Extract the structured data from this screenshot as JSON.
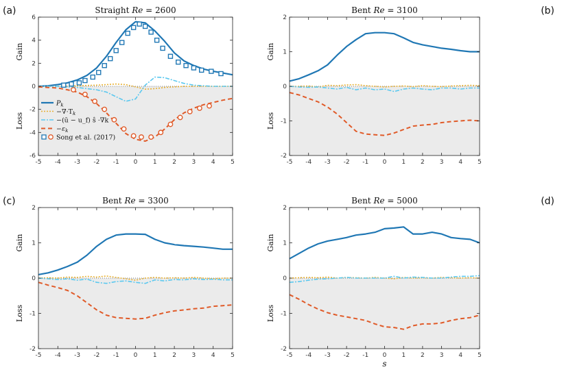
{
  "chart_data": [
    {
      "type": "line",
      "panel_label": "(a)",
      "title": "Straight Re = 2600",
      "xlabel": "",
      "gain_label": "Gain",
      "loss_label": "Loss",
      "xlim": [
        -5,
        5
      ],
      "ylim": [
        -6,
        6
      ],
      "xticks": [
        "-5",
        "-4",
        "-3",
        "-2",
        "-1",
        "0",
        "1",
        "2",
        "3",
        "4",
        "5"
      ],
      "yticks": [
        "-6",
        "-4",
        "-2",
        "0",
        "2",
        "4",
        "6"
      ],
      "x": [
        -5,
        -4.5,
        -4,
        -3.5,
        -3,
        -2.5,
        -2,
        -1.5,
        -1,
        -0.5,
        0,
        0.5,
        1,
        1.5,
        2,
        2.5,
        3,
        3.5,
        4,
        4.5,
        5
      ],
      "series": [
        {
          "name": "P_k",
          "style": "Pk",
          "values": [
            0,
            0.05,
            0.15,
            0.3,
            0.55,
            0.95,
            1.6,
            2.6,
            3.8,
            4.9,
            5.6,
            5.5,
            4.8,
            3.9,
            2.9,
            2.2,
            1.8,
            1.5,
            1.3,
            1.15,
            1.0
          ]
        },
        {
          "name": "-∇·T_k",
          "style": "Tk",
          "values": [
            0,
            0,
            0,
            0.02,
            0.05,
            0.08,
            0.1,
            0.15,
            0.2,
            0.15,
            -0.05,
            -0.25,
            -0.2,
            -0.1,
            -0.05,
            0,
            0,
            0,
            0,
            0,
            0
          ]
        },
        {
          "name": "adv",
          "style": "adv",
          "values": [
            0,
            0,
            -0.02,
            -0.05,
            -0.1,
            -0.2,
            -0.3,
            -0.5,
            -0.9,
            -1.3,
            -1.1,
            0.1,
            0.8,
            0.75,
            0.5,
            0.25,
            0.1,
            0.05,
            0,
            0,
            0
          ]
        },
        {
          "name": "ε_k",
          "style": "eps",
          "values": [
            -0.05,
            -0.1,
            -0.15,
            -0.3,
            -0.5,
            -0.9,
            -1.5,
            -2.3,
            -3.2,
            -4.1,
            -4.6,
            -4.75,
            -4.4,
            -3.7,
            -2.9,
            -2.3,
            -1.9,
            -1.6,
            -1.4,
            -1.2,
            -1.05
          ]
        }
      ],
      "markers": [
        {
          "name": "Song et al. (2017) squares",
          "style": "sq",
          "x": [
            -3.7,
            -3.3,
            -2.9,
            -2.6,
            -2.2,
            -1.9,
            -1.6,
            -1.3,
            -1.0,
            -0.7,
            -0.4,
            -0.1,
            0.2,
            0.5,
            0.8,
            1.1,
            1.4,
            1.8,
            2.2,
            2.6,
            3.0,
            3.4,
            3.9,
            4.4
          ],
          "y": [
            0.1,
            0.2,
            0.3,
            0.5,
            0.8,
            1.2,
            1.8,
            2.4,
            3.1,
            3.8,
            4.6,
            5.1,
            5.4,
            5.2,
            4.7,
            4.0,
            3.3,
            2.6,
            2.1,
            1.8,
            1.6,
            1.4,
            1.3,
            1.1
          ]
        },
        {
          "name": "Song et al. (2017) circles",
          "style": "circ",
          "x": [
            -3.2,
            -2.6,
            -2.1,
            -1.6,
            -1.1,
            -0.6,
            -0.1,
            0.3,
            0.8,
            1.3,
            1.8,
            2.3,
            2.8,
            3.3,
            3.8
          ],
          "y": [
            -0.3,
            -0.7,
            -1.3,
            -2.0,
            -2.9,
            -3.7,
            -4.3,
            -4.4,
            -4.4,
            -4.0,
            -3.3,
            -2.7,
            -2.2,
            -1.9,
            -1.7
          ]
        }
      ],
      "legend": {
        "position": "lower-left",
        "entries": [
          {
            "style": "Pk",
            "label": "P",
            "sub": "k"
          },
          {
            "style": "Tk",
            "label": "−∇·T",
            "sub": "k"
          },
          {
            "style": "adv",
            "label": "−(ū − u_f) ŝ ·∇k",
            "sub": ""
          },
          {
            "style": "eps",
            "label": "−ε",
            "sub": "k"
          },
          {
            "style": "song",
            "label": "Song et al. (2017)",
            "sub": ""
          }
        ]
      }
    },
    {
      "type": "line",
      "panel_label": "(b)",
      "title": "Bent Re = 3100",
      "xlabel": "",
      "gain_label": "Gain",
      "loss_label": "Loss",
      "xlim": [
        -5,
        5
      ],
      "ylim": [
        -2,
        2
      ],
      "xticks": [
        "-5",
        "-4",
        "-3",
        "-2",
        "-1",
        "0",
        "1",
        "2",
        "3",
        "4",
        "5"
      ],
      "yticks": [
        "-2",
        "-1",
        "0",
        "1",
        "2"
      ],
      "x": [
        -5,
        -4.5,
        -4,
        -3.5,
        -3,
        -2.5,
        -2,
        -1.5,
        -1,
        -0.5,
        0,
        0.5,
        1,
        1.5,
        2,
        2.5,
        3,
        3.5,
        4,
        4.5,
        5
      ],
      "series": [
        {
          "name": "P_k",
          "style": "Pk",
          "values": [
            0.15,
            0.22,
            0.33,
            0.45,
            0.62,
            0.9,
            1.15,
            1.35,
            1.52,
            1.55,
            1.55,
            1.52,
            1.4,
            1.27,
            1.2,
            1.15,
            1.1,
            1.07,
            1.03,
            1.0,
            1.0
          ]
        },
        {
          "name": "-∇·T_k",
          "style": "Tk",
          "values": [
            0,
            0,
            0.01,
            -0.02,
            0.03,
            0.02,
            0.04,
            0.05,
            0.02,
            0.0,
            -0.02,
            0.0,
            0.01,
            -0.01,
            0.02,
            0.0,
            -0.01,
            0.01,
            0.02,
            0.03,
            0.02
          ]
        },
        {
          "name": "adv",
          "style": "adv",
          "values": [
            0,
            -0.02,
            -0.03,
            -0.02,
            -0.05,
            -0.08,
            -0.03,
            -0.1,
            -0.05,
            -0.1,
            -0.08,
            -0.15,
            -0.08,
            -0.05,
            -0.08,
            -0.1,
            -0.05,
            -0.05,
            -0.08,
            -0.05,
            -0.05
          ]
        },
        {
          "name": "ε_k",
          "style": "eps",
          "values": [
            -0.18,
            -0.25,
            -0.35,
            -0.45,
            -0.6,
            -0.8,
            -1.05,
            -1.3,
            -1.38,
            -1.4,
            -1.42,
            -1.35,
            -1.25,
            -1.15,
            -1.12,
            -1.1,
            -1.05,
            -1.02,
            -1.0,
            -0.98,
            -1.0
          ]
        }
      ]
    },
    {
      "type": "line",
      "panel_label": "(c)",
      "title": "Bent Re = 3300",
      "xlabel": "",
      "gain_label": "Gain",
      "loss_label": "Loss",
      "xlim": [
        -5,
        5
      ],
      "ylim": [
        -2,
        2
      ],
      "xticks": [
        "-5",
        "-4",
        "-3",
        "-2",
        "-1",
        "0",
        "1",
        "2",
        "3",
        "4",
        "5"
      ],
      "yticks": [
        "-2",
        "-1",
        "0",
        "1",
        "2"
      ],
      "x": [
        -5,
        -4.5,
        -4,
        -3.5,
        -3,
        -2.5,
        -2,
        -1.5,
        -1,
        -0.5,
        0,
        0.5,
        1,
        1.5,
        2,
        2.5,
        3,
        3.5,
        4,
        4.5,
        5
      ],
      "series": [
        {
          "name": "P_k",
          "style": "Pk",
          "values": [
            0.1,
            0.15,
            0.23,
            0.33,
            0.45,
            0.65,
            0.9,
            1.1,
            1.22,
            1.25,
            1.25,
            1.24,
            1.1,
            1.0,
            0.95,
            0.92,
            0.9,
            0.88,
            0.85,
            0.82,
            0.82
          ]
        },
        {
          "name": "-∇·T_k",
          "style": "Tk",
          "values": [
            0,
            0.01,
            0,
            0.03,
            0.02,
            0.05,
            0.03,
            0.06,
            0.02,
            -0.02,
            -0.06,
            0.0,
            0.02,
            0.0,
            0.01,
            0.0,
            0.02,
            0.0,
            -0.02,
            0.0,
            0.0
          ]
        },
        {
          "name": "adv",
          "style": "adv",
          "values": [
            0,
            -0.02,
            -0.04,
            -0.02,
            -0.06,
            -0.03,
            -0.12,
            -0.15,
            -0.1,
            -0.08,
            -0.12,
            -0.15,
            -0.05,
            -0.08,
            -0.04,
            -0.05,
            -0.02,
            -0.04,
            -0.03,
            -0.05,
            -0.05
          ]
        },
        {
          "name": "ε_k",
          "style": "eps",
          "values": [
            -0.12,
            -0.2,
            -0.27,
            -0.35,
            -0.5,
            -0.7,
            -0.9,
            -1.05,
            -1.12,
            -1.14,
            -1.16,
            -1.14,
            -1.05,
            -0.98,
            -0.93,
            -0.9,
            -0.87,
            -0.85,
            -0.8,
            -0.78,
            -0.76
          ]
        }
      ]
    },
    {
      "type": "line",
      "panel_label": "(d)",
      "title": "Bent Re = 5000",
      "xlabel": "s",
      "gain_label": "Gain",
      "loss_label": "Loss",
      "xlim": [
        -5,
        5
      ],
      "ylim": [
        -2,
        2
      ],
      "xticks": [
        "-5",
        "-4",
        "-3",
        "-2",
        "-1",
        "0",
        "1",
        "2",
        "3",
        "4",
        "5"
      ],
      "yticks": [
        "-2",
        "-1",
        "0",
        "1",
        "2"
      ],
      "x": [
        -5,
        -4.5,
        -4,
        -3.5,
        -3,
        -2.5,
        -2,
        -1.5,
        -1,
        -0.5,
        0,
        0.5,
        1,
        1.5,
        2,
        2.5,
        3,
        3.5,
        4,
        4.5,
        5
      ],
      "series": [
        {
          "name": "P_k",
          "style": "Pk",
          "values": [
            0.55,
            0.7,
            0.85,
            0.97,
            1.05,
            1.1,
            1.15,
            1.22,
            1.25,
            1.3,
            1.4,
            1.42,
            1.45,
            1.25,
            1.25,
            1.3,
            1.25,
            1.15,
            1.12,
            1.1,
            1.0
          ]
        },
        {
          "name": "-∇·T_k",
          "style": "Tk",
          "values": [
            0,
            0.01,
            0.02,
            0.01,
            0.03,
            0.0,
            0.02,
            0.01,
            0.0,
            0.02,
            0.0,
            -0.02,
            0.02,
            0.0,
            0.01,
            0.0,
            0.02,
            0.01,
            0.0,
            0.01,
            0.0
          ]
        },
        {
          "name": "adv",
          "style": "adv",
          "values": [
            -0.12,
            -0.1,
            -0.06,
            -0.03,
            -0.02,
            0.0,
            0.02,
            0.0,
            0.0,
            0.0,
            0.0,
            0.05,
            0.0,
            0.03,
            0.02,
            0.0,
            0.0,
            0.03,
            0.05,
            0.05,
            0.07
          ]
        },
        {
          "name": "ε_k",
          "style": "eps",
          "values": [
            -0.47,
            -0.6,
            -0.75,
            -0.88,
            -0.98,
            -1.05,
            -1.1,
            -1.15,
            -1.2,
            -1.3,
            -1.38,
            -1.4,
            -1.45,
            -1.35,
            -1.3,
            -1.3,
            -1.27,
            -1.2,
            -1.15,
            -1.12,
            -1.05
          ]
        }
      ]
    }
  ]
}
